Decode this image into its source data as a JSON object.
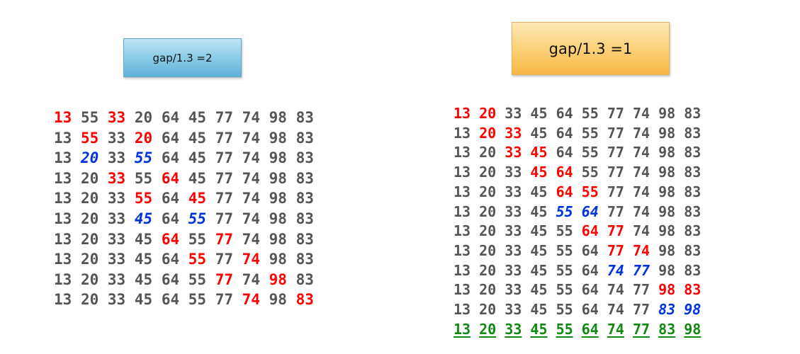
{
  "left_panel": {
    "label": "gap/1.3 =2",
    "rows": [
      [
        {
          "v": "13",
          "c": "red"
        },
        {
          "v": "55",
          "c": "gray"
        },
        {
          "v": "33",
          "c": "red"
        },
        {
          "v": "20",
          "c": "gray"
        },
        {
          "v": "64",
          "c": "gray"
        },
        {
          "v": "45",
          "c": "gray"
        },
        {
          "v": "77",
          "c": "gray"
        },
        {
          "v": "74",
          "c": "gray"
        },
        {
          "v": "98",
          "c": "gray"
        },
        {
          "v": "83",
          "c": "gray"
        }
      ],
      [
        {
          "v": "13",
          "c": "gray"
        },
        {
          "v": "55",
          "c": "red"
        },
        {
          "v": "33",
          "c": "gray"
        },
        {
          "v": "20",
          "c": "red"
        },
        {
          "v": "64",
          "c": "gray"
        },
        {
          "v": "45",
          "c": "gray"
        },
        {
          "v": "77",
          "c": "gray"
        },
        {
          "v": "74",
          "c": "gray"
        },
        {
          "v": "98",
          "c": "gray"
        },
        {
          "v": "83",
          "c": "gray"
        }
      ],
      [
        {
          "v": "13",
          "c": "gray"
        },
        {
          "v": "20",
          "c": "blue"
        },
        {
          "v": "33",
          "c": "gray"
        },
        {
          "v": "55",
          "c": "blue"
        },
        {
          "v": "64",
          "c": "gray"
        },
        {
          "v": "45",
          "c": "gray"
        },
        {
          "v": "77",
          "c": "gray"
        },
        {
          "v": "74",
          "c": "gray"
        },
        {
          "v": "98",
          "c": "gray"
        },
        {
          "v": "83",
          "c": "gray"
        }
      ],
      [
        {
          "v": "13",
          "c": "gray"
        },
        {
          "v": "20",
          "c": "gray"
        },
        {
          "v": "33",
          "c": "red"
        },
        {
          "v": "55",
          "c": "gray"
        },
        {
          "v": "64",
          "c": "red"
        },
        {
          "v": "45",
          "c": "gray"
        },
        {
          "v": "77",
          "c": "gray"
        },
        {
          "v": "74",
          "c": "gray"
        },
        {
          "v": "98",
          "c": "gray"
        },
        {
          "v": "83",
          "c": "gray"
        }
      ],
      [
        {
          "v": "13",
          "c": "gray"
        },
        {
          "v": "20",
          "c": "gray"
        },
        {
          "v": "33",
          "c": "gray"
        },
        {
          "v": "55",
          "c": "red"
        },
        {
          "v": "64",
          "c": "gray"
        },
        {
          "v": "45",
          "c": "red"
        },
        {
          "v": "77",
          "c": "gray"
        },
        {
          "v": "74",
          "c": "gray"
        },
        {
          "v": "98",
          "c": "gray"
        },
        {
          "v": "83",
          "c": "gray"
        }
      ],
      [
        {
          "v": "13",
          "c": "gray"
        },
        {
          "v": "20",
          "c": "gray"
        },
        {
          "v": "33",
          "c": "gray"
        },
        {
          "v": "45",
          "c": "blue"
        },
        {
          "v": "64",
          "c": "gray"
        },
        {
          "v": "55",
          "c": "blue"
        },
        {
          "v": "77",
          "c": "gray"
        },
        {
          "v": "74",
          "c": "gray"
        },
        {
          "v": "98",
          "c": "gray"
        },
        {
          "v": "83",
          "c": "gray"
        }
      ],
      [
        {
          "v": "13",
          "c": "gray"
        },
        {
          "v": "20",
          "c": "gray"
        },
        {
          "v": "33",
          "c": "gray"
        },
        {
          "v": "45",
          "c": "gray"
        },
        {
          "v": "64",
          "c": "red"
        },
        {
          "v": "55",
          "c": "gray"
        },
        {
          "v": "77",
          "c": "red"
        },
        {
          "v": "74",
          "c": "gray"
        },
        {
          "v": "98",
          "c": "gray"
        },
        {
          "v": "83",
          "c": "gray"
        }
      ],
      [
        {
          "v": "13",
          "c": "gray"
        },
        {
          "v": "20",
          "c": "gray"
        },
        {
          "v": "33",
          "c": "gray"
        },
        {
          "v": "45",
          "c": "gray"
        },
        {
          "v": "64",
          "c": "gray"
        },
        {
          "v": "55",
          "c": "red"
        },
        {
          "v": "77",
          "c": "gray"
        },
        {
          "v": "74",
          "c": "red"
        },
        {
          "v": "98",
          "c": "gray"
        },
        {
          "v": "83",
          "c": "gray"
        }
      ],
      [
        {
          "v": "13",
          "c": "gray"
        },
        {
          "v": "20",
          "c": "gray"
        },
        {
          "v": "33",
          "c": "gray"
        },
        {
          "v": "45",
          "c": "gray"
        },
        {
          "v": "64",
          "c": "gray"
        },
        {
          "v": "55",
          "c": "gray"
        },
        {
          "v": "77",
          "c": "red"
        },
        {
          "v": "74",
          "c": "gray"
        },
        {
          "v": "98",
          "c": "red"
        },
        {
          "v": "83",
          "c": "gray"
        }
      ],
      [
        {
          "v": "13",
          "c": "gray"
        },
        {
          "v": "20",
          "c": "gray"
        },
        {
          "v": "33",
          "c": "gray"
        },
        {
          "v": "45",
          "c": "gray"
        },
        {
          "v": "64",
          "c": "gray"
        },
        {
          "v": "55",
          "c": "gray"
        },
        {
          "v": "77",
          "c": "gray"
        },
        {
          "v": "74",
          "c": "red"
        },
        {
          "v": "98",
          "c": "gray"
        },
        {
          "v": "83",
          "c": "red"
        }
      ]
    ]
  },
  "right_panel": {
    "label": "gap/1.3 =1",
    "rows": [
      [
        {
          "v": "13",
          "c": "red"
        },
        {
          "v": "20",
          "c": "red"
        },
        {
          "v": "33",
          "c": "gray"
        },
        {
          "v": "45",
          "c": "gray"
        },
        {
          "v": "64",
          "c": "gray"
        },
        {
          "v": "55",
          "c": "gray"
        },
        {
          "v": "77",
          "c": "gray"
        },
        {
          "v": "74",
          "c": "gray"
        },
        {
          "v": "98",
          "c": "gray"
        },
        {
          "v": "83",
          "c": "gray"
        }
      ],
      [
        {
          "v": "13",
          "c": "gray"
        },
        {
          "v": "20",
          "c": "red"
        },
        {
          "v": "33",
          "c": "red"
        },
        {
          "v": "45",
          "c": "gray"
        },
        {
          "v": "64",
          "c": "gray"
        },
        {
          "v": "55",
          "c": "gray"
        },
        {
          "v": "77",
          "c": "gray"
        },
        {
          "v": "74",
          "c": "gray"
        },
        {
          "v": "98",
          "c": "gray"
        },
        {
          "v": "83",
          "c": "gray"
        }
      ],
      [
        {
          "v": "13",
          "c": "gray"
        },
        {
          "v": "20",
          "c": "gray"
        },
        {
          "v": "33",
          "c": "red"
        },
        {
          "v": "45",
          "c": "red"
        },
        {
          "v": "64",
          "c": "gray"
        },
        {
          "v": "55",
          "c": "gray"
        },
        {
          "v": "77",
          "c": "gray"
        },
        {
          "v": "74",
          "c": "gray"
        },
        {
          "v": "98",
          "c": "gray"
        },
        {
          "v": "83",
          "c": "gray"
        }
      ],
      [
        {
          "v": "13",
          "c": "gray"
        },
        {
          "v": "20",
          "c": "gray"
        },
        {
          "v": "33",
          "c": "gray"
        },
        {
          "v": "45",
          "c": "red"
        },
        {
          "v": "64",
          "c": "red"
        },
        {
          "v": "55",
          "c": "gray"
        },
        {
          "v": "77",
          "c": "gray"
        },
        {
          "v": "74",
          "c": "gray"
        },
        {
          "v": "98",
          "c": "gray"
        },
        {
          "v": "83",
          "c": "gray"
        }
      ],
      [
        {
          "v": "13",
          "c": "gray"
        },
        {
          "v": "20",
          "c": "gray"
        },
        {
          "v": "33",
          "c": "gray"
        },
        {
          "v": "45",
          "c": "gray"
        },
        {
          "v": "64",
          "c": "red"
        },
        {
          "v": "55",
          "c": "red"
        },
        {
          "v": "77",
          "c": "gray"
        },
        {
          "v": "74",
          "c": "gray"
        },
        {
          "v": "98",
          "c": "gray"
        },
        {
          "v": "83",
          "c": "gray"
        }
      ],
      [
        {
          "v": "13",
          "c": "gray"
        },
        {
          "v": "20",
          "c": "gray"
        },
        {
          "v": "33",
          "c": "gray"
        },
        {
          "v": "45",
          "c": "gray"
        },
        {
          "v": "55",
          "c": "blue"
        },
        {
          "v": "64",
          "c": "blue"
        },
        {
          "v": "77",
          "c": "gray"
        },
        {
          "v": "74",
          "c": "gray"
        },
        {
          "v": "98",
          "c": "gray"
        },
        {
          "v": "83",
          "c": "gray"
        }
      ],
      [
        {
          "v": "13",
          "c": "gray"
        },
        {
          "v": "20",
          "c": "gray"
        },
        {
          "v": "33",
          "c": "gray"
        },
        {
          "v": "45",
          "c": "gray"
        },
        {
          "v": "55",
          "c": "gray"
        },
        {
          "v": "64",
          "c": "red"
        },
        {
          "v": "77",
          "c": "red"
        },
        {
          "v": "74",
          "c": "gray"
        },
        {
          "v": "98",
          "c": "gray"
        },
        {
          "v": "83",
          "c": "gray"
        }
      ],
      [
        {
          "v": "13",
          "c": "gray"
        },
        {
          "v": "20",
          "c": "gray"
        },
        {
          "v": "33",
          "c": "gray"
        },
        {
          "v": "45",
          "c": "gray"
        },
        {
          "v": "55",
          "c": "gray"
        },
        {
          "v": "64",
          "c": "gray"
        },
        {
          "v": "77",
          "c": "red"
        },
        {
          "v": "74",
          "c": "red"
        },
        {
          "v": "98",
          "c": "gray"
        },
        {
          "v": "83",
          "c": "gray"
        }
      ],
      [
        {
          "v": "13",
          "c": "gray"
        },
        {
          "v": "20",
          "c": "gray"
        },
        {
          "v": "33",
          "c": "gray"
        },
        {
          "v": "45",
          "c": "gray"
        },
        {
          "v": "55",
          "c": "gray"
        },
        {
          "v": "64",
          "c": "gray"
        },
        {
          "v": "74",
          "c": "blue"
        },
        {
          "v": "77",
          "c": "blue"
        },
        {
          "v": "98",
          "c": "gray"
        },
        {
          "v": "83",
          "c": "gray"
        }
      ],
      [
        {
          "v": "13",
          "c": "gray"
        },
        {
          "v": "20",
          "c": "gray"
        },
        {
          "v": "33",
          "c": "gray"
        },
        {
          "v": "45",
          "c": "gray"
        },
        {
          "v": "55",
          "c": "gray"
        },
        {
          "v": "64",
          "c": "gray"
        },
        {
          "v": "74",
          "c": "gray"
        },
        {
          "v": "77",
          "c": "gray"
        },
        {
          "v": "98",
          "c": "red"
        },
        {
          "v": "83",
          "c": "red"
        }
      ],
      [
        {
          "v": "13",
          "c": "gray"
        },
        {
          "v": "20",
          "c": "gray"
        },
        {
          "v": "33",
          "c": "gray"
        },
        {
          "v": "45",
          "c": "gray"
        },
        {
          "v": "55",
          "c": "gray"
        },
        {
          "v": "64",
          "c": "gray"
        },
        {
          "v": "74",
          "c": "gray"
        },
        {
          "v": "77",
          "c": "gray"
        },
        {
          "v": "83",
          "c": "blue"
        },
        {
          "v": "98",
          "c": "blue"
        }
      ],
      [
        {
          "v": "13",
          "c": "green"
        },
        {
          "v": "20",
          "c": "green"
        },
        {
          "v": "33",
          "c": "green"
        },
        {
          "v": "45",
          "c": "green"
        },
        {
          "v": "55",
          "c": "green"
        },
        {
          "v": "64",
          "c": "green"
        },
        {
          "v": "74",
          "c": "green"
        },
        {
          "v": "77",
          "c": "green"
        },
        {
          "v": "83",
          "c": "green"
        },
        {
          "v": "98",
          "c": "green"
        }
      ]
    ]
  },
  "colors": {
    "gray": "#555555",
    "red": "#ff0000",
    "blue": "#0033dd",
    "green": "#118811"
  }
}
